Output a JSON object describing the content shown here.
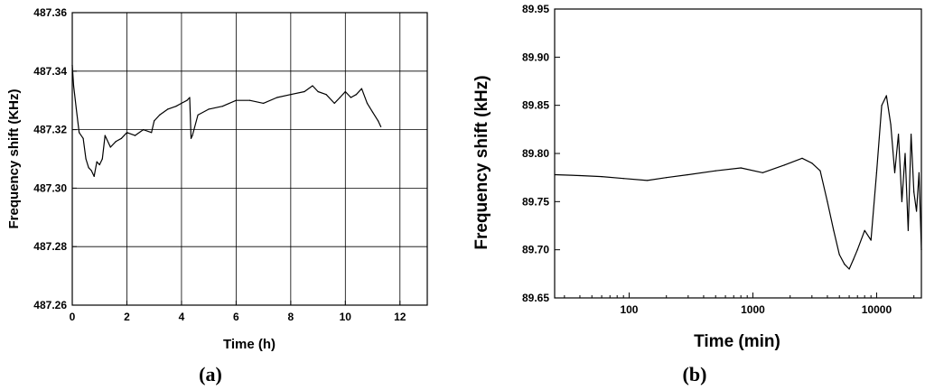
{
  "chart_data": [
    {
      "type": "line",
      "panel_label": "(a)",
      "xlabel": "Time (h)",
      "ylabel": "Frequency shift (KHz)",
      "xlim": [
        0,
        13
      ],
      "ylim": [
        487.26,
        487.36
      ],
      "xscale": "linear",
      "grid": true,
      "x_ticks": [
        0,
        2,
        4,
        6,
        8,
        10,
        12
      ],
      "x_tick_labels": [
        "0",
        "2",
        "4",
        "6",
        "8",
        "10",
        "12"
      ],
      "y_ticks": [
        487.26,
        487.28,
        487.3,
        487.32,
        487.34,
        487.36
      ],
      "y_tick_labels": [
        "487.26",
        "487.28",
        "487.30",
        "487.32",
        "487.34",
        "487.36"
      ],
      "series": [
        {
          "x": [
            0,
            0.05,
            0.15,
            0.25,
            0.4,
            0.5,
            0.6,
            0.7,
            0.8,
            0.9,
            1.0,
            1.1,
            1.2,
            1.4,
            1.6,
            1.8,
            2.0,
            2.3,
            2.6,
            2.9,
            3.0,
            3.2,
            3.5,
            3.8,
            4.0,
            4.2,
            4.3,
            4.35,
            4.4,
            4.6,
            5.0,
            5.5,
            6.0,
            6.5,
            7.0,
            7.5,
            8.0,
            8.5,
            8.8,
            9.0,
            9.3,
            9.6,
            9.8,
            10.0,
            10.2,
            10.4,
            10.6,
            10.8,
            11.0,
            11.2,
            11.3
          ],
          "y": [
            487.342,
            487.335,
            487.327,
            487.319,
            487.317,
            487.31,
            487.307,
            487.306,
            487.304,
            487.309,
            487.308,
            487.31,
            487.318,
            487.314,
            487.316,
            487.317,
            487.319,
            487.318,
            487.32,
            487.319,
            487.323,
            487.325,
            487.327,
            487.328,
            487.329,
            487.33,
            487.331,
            487.317,
            487.318,
            487.325,
            487.327,
            487.328,
            487.33,
            487.33,
            487.329,
            487.331,
            487.332,
            487.333,
            487.335,
            487.333,
            487.332,
            487.329,
            487.331,
            487.333,
            487.331,
            487.332,
            487.334,
            487.329,
            487.326,
            487.323,
            487.321
          ]
        }
      ]
    },
    {
      "type": "line",
      "panel_label": "(b)",
      "xlabel": "Time (min)",
      "ylabel": "Frequency shift (kHz)",
      "xlim": [
        25,
        23000
      ],
      "ylim": [
        89.65,
        89.95
      ],
      "xscale": "log",
      "grid": false,
      "x_ticks": [
        100,
        1000,
        10000
      ],
      "x_tick_labels": [
        "100",
        "1000",
        "10000"
      ],
      "y_ticks": [
        89.65,
        89.7,
        89.75,
        89.8,
        89.85,
        89.9,
        89.95
      ],
      "y_tick_labels": [
        "89.65",
        "89.70",
        "89.75",
        "89.80",
        "89.85",
        "89.90",
        "89.95"
      ],
      "series": [
        {
          "x": [
            25,
            40,
            60,
            90,
            140,
            200,
            300,
            500,
            800,
            1200,
            1800,
            2500,
            3000,
            3500,
            4000,
            4500,
            5000,
            5500,
            6000,
            6500,
            7000,
            8000,
            9000,
            10000,
            11000,
            12000,
            13000,
            14000,
            15000,
            16000,
            17000,
            18000,
            19000,
            20000,
            21000,
            22000,
            23000
          ],
          "y": [
            89.778,
            89.777,
            89.776,
            89.774,
            89.772,
            89.775,
            89.778,
            89.782,
            89.785,
            89.78,
            89.788,
            89.795,
            89.79,
            89.782,
            89.75,
            89.72,
            89.695,
            89.685,
            89.68,
            89.69,
            89.7,
            89.72,
            89.71,
            89.78,
            89.85,
            89.86,
            89.83,
            89.78,
            89.82,
            89.75,
            89.8,
            89.72,
            89.82,
            89.76,
            89.74,
            89.78,
            89.7
          ]
        }
      ]
    }
  ]
}
